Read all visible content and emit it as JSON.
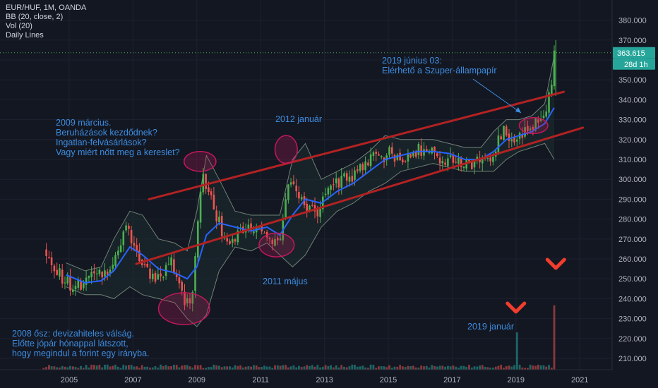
{
  "header": {
    "symbol": "EUR/HUF, 1M, OANDA",
    "indicators": [
      "BB (20, close, 2)",
      "Vol (20)",
      "Daily Lines"
    ]
  },
  "annotations": [
    {
      "id": "ann-2009-march",
      "lines": [
        "2009 március.",
        "Beruházások kezdődnek?",
        "Ingatlan-felvásárlások?",
        "Vagy miért nőtt meg a kereslet?"
      ]
    },
    {
      "id": "ann-2012-jan",
      "lines": [
        "2012 január"
      ]
    },
    {
      "id": "ann-2019-june",
      "lines": [
        "2019 június 03:",
        "Elérhető a Szuper-állampapír"
      ]
    },
    {
      "id": "ann-2011-may",
      "lines": [
        "2011 május"
      ]
    },
    {
      "id": "ann-2019-jan",
      "lines": [
        "2019 január"
      ]
    },
    {
      "id": "ann-2008-fall",
      "lines": [
        "2008 ősz: devizahiteles válság.",
        "Előtte jópár hónappal látszott,",
        "hogy megindul a forint egy irányba."
      ]
    }
  ],
  "price_badge": {
    "value": "363.615",
    "countdown": "28d 1h"
  },
  "colors": {
    "background": "#131722",
    "up": "#26a69a",
    "up_candle": "#4caf50",
    "down": "#ef5350",
    "basis": "#2962ff",
    "band": "#8a9a8a",
    "channel": "#b22222",
    "annotation": "#3d8de0",
    "price_line": "#4caf50"
  },
  "chart_data": {
    "type": "candlestick",
    "y_axis": {
      "ticks": [
        210,
        220,
        230,
        240,
        250,
        260,
        270,
        280,
        290,
        300,
        310,
        320,
        330,
        340,
        350,
        360,
        370,
        380
      ],
      "tick_labels": [
        "210.000",
        "220.000",
        "230.000",
        "240.000",
        "250.000",
        "260.000",
        "270.000",
        "280.000",
        "290.000",
        "300.000",
        "310.000",
        "320.000",
        "330.000",
        "340.000",
        "350.000",
        "360.000",
        "370.000",
        "380.000"
      ]
    },
    "x_axis": {
      "ticks": [
        2005,
        2007,
        2009,
        2011,
        2013,
        2015,
        2017,
        2019,
        2021
      ],
      "tick_labels": [
        "2005",
        "2007",
        "2009",
        "2011",
        "2013",
        "2015",
        "2017",
        "2019",
        "2021"
      ]
    },
    "last_price": 363.615,
    "close_path": [
      [
        2004.2,
        264
      ],
      [
        2004.5,
        256
      ],
      [
        2004.9,
        248
      ],
      [
        2005.3,
        246
      ],
      [
        2005.6,
        250
      ],
      [
        2006.0,
        252
      ],
      [
        2006.3,
        256
      ],
      [
        2006.6,
        268
      ],
      [
        2006.8,
        280
      ],
      [
        2007.0,
        268
      ],
      [
        2007.3,
        258
      ],
      [
        2007.6,
        250
      ],
      [
        2007.9,
        252
      ],
      [
        2008.2,
        258
      ],
      [
        2008.4,
        248
      ],
      [
        2008.6,
        240
      ],
      [
        2008.8,
        236
      ],
      [
        2008.9,
        250
      ],
      [
        2009.0,
        270
      ],
      [
        2009.1,
        290
      ],
      [
        2009.2,
        300
      ],
      [
        2009.4,
        292
      ],
      [
        2009.6,
        282
      ],
      [
        2009.8,
        274
      ],
      [
        2010.0,
        270
      ],
      [
        2010.3,
        272
      ],
      [
        2010.6,
        278
      ],
      [
        2010.9,
        276
      ],
      [
        2011.1,
        272
      ],
      [
        2011.4,
        267
      ],
      [
        2011.6,
        268
      ],
      [
        2011.75,
        285
      ],
      [
        2011.9,
        305
      ],
      [
        2012.0,
        298
      ],
      [
        2012.2,
        292
      ],
      [
        2012.5,
        286
      ],
      [
        2012.8,
        284
      ],
      [
        2013.0,
        294
      ],
      [
        2013.3,
        296
      ],
      [
        2013.6,
        302
      ],
      [
        2013.9,
        300
      ],
      [
        2014.2,
        306
      ],
      [
        2014.5,
        312
      ],
      [
        2014.8,
        310
      ],
      [
        2015.0,
        316
      ],
      [
        2015.3,
        310
      ],
      [
        2015.6,
        312
      ],
      [
        2015.9,
        314
      ],
      [
        2016.2,
        316
      ],
      [
        2016.5,
        312
      ],
      [
        2016.8,
        310
      ],
      [
        2017.0,
        310
      ],
      [
        2017.3,
        308
      ],
      [
        2017.6,
        306
      ],
      [
        2017.9,
        310
      ],
      [
        2018.2,
        312
      ],
      [
        2018.4,
        318
      ],
      [
        2018.6,
        326
      ],
      [
        2018.8,
        322
      ],
      [
        2019.0,
        320
      ],
      [
        2019.2,
        322
      ],
      [
        2019.4,
        326
      ],
      [
        2019.6,
        328
      ],
      [
        2019.8,
        332
      ],
      [
        2019.95,
        336
      ],
      [
        2020.1,
        346
      ],
      [
        2020.2,
        368
      ],
      [
        2020.25,
        363.615
      ]
    ],
    "bb_basis_path": [
      [
        2004.9,
        252
      ],
      [
        2005.5,
        248
      ],
      [
        2006.0,
        249
      ],
      [
        2006.4,
        254
      ],
      [
        2006.9,
        266
      ],
      [
        2007.3,
        262
      ],
      [
        2007.8,
        255
      ],
      [
        2008.3,
        253
      ],
      [
        2008.7,
        250
      ],
      [
        2009.0,
        256
      ],
      [
        2009.3,
        272
      ],
      [
        2009.7,
        278
      ],
      [
        2010.2,
        276
      ],
      [
        2010.7,
        274
      ],
      [
        2011.2,
        276
      ],
      [
        2011.6,
        272
      ],
      [
        2012.0,
        282
      ],
      [
        2012.4,
        290
      ],
      [
        2012.9,
        288
      ],
      [
        2013.4,
        294
      ],
      [
        2013.9,
        298
      ],
      [
        2014.4,
        304
      ],
      [
        2014.9,
        310
      ],
      [
        2015.4,
        312
      ],
      [
        2015.9,
        314
      ],
      [
        2016.4,
        314
      ],
      [
        2016.9,
        313
      ],
      [
        2017.4,
        310
      ],
      [
        2017.9,
        310
      ],
      [
        2018.3,
        314
      ],
      [
        2018.7,
        320
      ],
      [
        2019.1,
        322
      ],
      [
        2019.5,
        324
      ],
      [
        2019.9,
        328
      ],
      [
        2020.2,
        336
      ]
    ],
    "bb_upper_path": [
      [
        2004.9,
        258
      ],
      [
        2005.5,
        254
      ],
      [
        2006.0,
        256
      ],
      [
        2006.4,
        270
      ],
      [
        2006.9,
        284
      ],
      [
        2007.3,
        282
      ],
      [
        2007.8,
        270
      ],
      [
        2008.3,
        268
      ],
      [
        2008.7,
        264
      ],
      [
        2009.0,
        284
      ],
      [
        2009.3,
        312
      ],
      [
        2009.7,
        300
      ],
      [
        2010.2,
        284
      ],
      [
        2010.7,
        282
      ],
      [
        2011.2,
        282
      ],
      [
        2011.6,
        282
      ],
      [
        2012.0,
        310
      ],
      [
        2012.4,
        318
      ],
      [
        2012.9,
        300
      ],
      [
        2013.4,
        304
      ],
      [
        2013.9,
        308
      ],
      [
        2014.4,
        314
      ],
      [
        2014.9,
        322
      ],
      [
        2015.4,
        320
      ],
      [
        2015.9,
        320
      ],
      [
        2016.4,
        320
      ],
      [
        2016.9,
        318
      ],
      [
        2017.4,
        316
      ],
      [
        2017.9,
        316
      ],
      [
        2018.3,
        324
      ],
      [
        2018.7,
        330
      ],
      [
        2019.1,
        330
      ],
      [
        2019.5,
        332
      ],
      [
        2019.9,
        338
      ],
      [
        2020.2,
        362
      ]
    ],
    "bb_lower_path": [
      [
        2004.9,
        246
      ],
      [
        2005.5,
        242
      ],
      [
        2006.0,
        242
      ],
      [
        2006.4,
        240
      ],
      [
        2006.9,
        246
      ],
      [
        2007.3,
        242
      ],
      [
        2007.8,
        240
      ],
      [
        2008.3,
        238
      ],
      [
        2008.7,
        230
      ],
      [
        2009.0,
        226
      ],
      [
        2009.3,
        232
      ],
      [
        2009.7,
        254
      ],
      [
        2010.2,
        266
      ],
      [
        2010.7,
        264
      ],
      [
        2011.2,
        268
      ],
      [
        2011.6,
        262
      ],
      [
        2012.0,
        256
      ],
      [
        2012.4,
        262
      ],
      [
        2012.9,
        276
      ],
      [
        2013.4,
        284
      ],
      [
        2013.9,
        288
      ],
      [
        2014.4,
        294
      ],
      [
        2014.9,
        298
      ],
      [
        2015.4,
        304
      ],
      [
        2015.9,
        306
      ],
      [
        2016.4,
        308
      ],
      [
        2016.9,
        306
      ],
      [
        2017.4,
        304
      ],
      [
        2017.9,
        304
      ],
      [
        2018.3,
        304
      ],
      [
        2018.7,
        310
      ],
      [
        2019.1,
        314
      ],
      [
        2019.5,
        316
      ],
      [
        2019.9,
        318
      ],
      [
        2020.2,
        310
      ]
    ],
    "channel_lines": [
      {
        "name": "upper",
        "from": [
          2007.5,
          290
        ],
        "to": [
          2020.5,
          344
        ]
      },
      {
        "name": "lower",
        "from": [
          2007.1,
          257.5
        ],
        "to": [
          2021.1,
          326
        ]
      }
    ],
    "highlight_circles": [
      {
        "x": 2009.1,
        "y": 309,
        "rx": 0.5,
        "ry": 5
      },
      {
        "x": 2011.8,
        "y": 315,
        "rx": 0.35,
        "ry": 7
      },
      {
        "x": 2011.5,
        "y": 267,
        "rx": 0.55,
        "ry": 6
      },
      {
        "x": 2008.6,
        "y": 235,
        "rx": 0.8,
        "ry": 8
      },
      {
        "x": 2019.55,
        "y": 327,
        "rx": 0.45,
        "ry": 4
      }
    ],
    "volume": {
      "axis_max": 100,
      "typical": 3,
      "spikes": [
        [
          2019.0,
          30
        ],
        [
          2019.05,
          33
        ],
        [
          2020.2,
          57
        ]
      ]
    },
    "arrows": [
      {
        "x": 2019.0
      },
      {
        "x": 2020.25
      }
    ]
  }
}
